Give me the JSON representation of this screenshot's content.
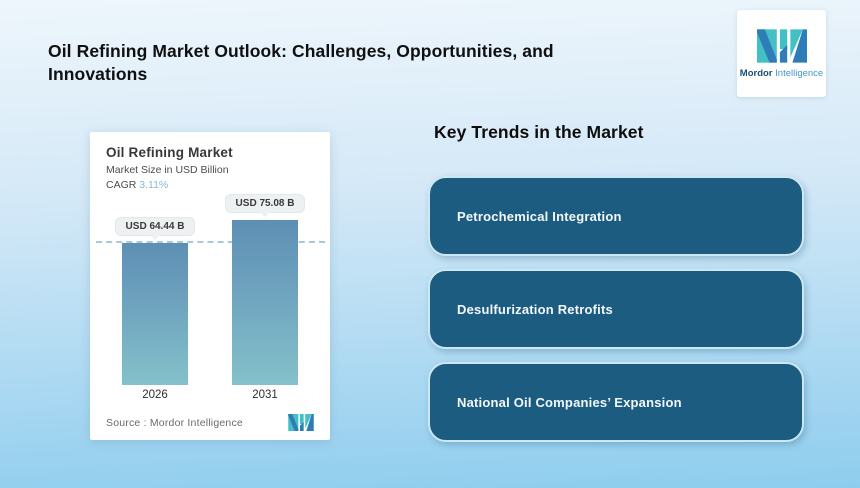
{
  "header": {
    "title": "Oil Refining Market Outlook: Challenges, Opportunities, and Innovations",
    "logo": {
      "brand_bold": "Mordor",
      "brand_regular": "Intelligence"
    }
  },
  "chart_card": {
    "title": "Oil Refining Market",
    "subtitle": "Market Size in USD Billion",
    "cagr_label": "CAGR",
    "cagr_value": "3.11%",
    "source_label": "Source :",
    "source_value": "Mordor Intelligence"
  },
  "chart_data": {
    "type": "bar",
    "title": "Oil Refining Market",
    "ylabel": "Market Size in USD Billion",
    "cagr_percent": 3.11,
    "categories": [
      "2026",
      "2031"
    ],
    "values": [
      64.44,
      75.08
    ],
    "value_labels": [
      "USD 64.44 B",
      "USD 75.08 B"
    ],
    "guideline_at": 64.44,
    "axis_hidden": true,
    "bar_gradient": [
      "#5d8fb4",
      "#84c1ca"
    ]
  },
  "trends": {
    "heading": "Key Trends in the Market",
    "items": [
      {
        "label": "Petrochemical Integration"
      },
      {
        "label": "Desulfurization Retrofits"
      },
      {
        "label": "National Oil Companies’ Expansion"
      }
    ]
  },
  "colors": {
    "background_top": "#eef6fc",
    "background_bottom": "#8ecdee",
    "trend_box_bg": "#1c5c80",
    "trend_box_border": "#cde7f3",
    "accent_teal": "#43c0c6",
    "accent_blue": "#2e7cb8",
    "cagr_value": "#85bcda",
    "guideline": "#a9c8db"
  }
}
